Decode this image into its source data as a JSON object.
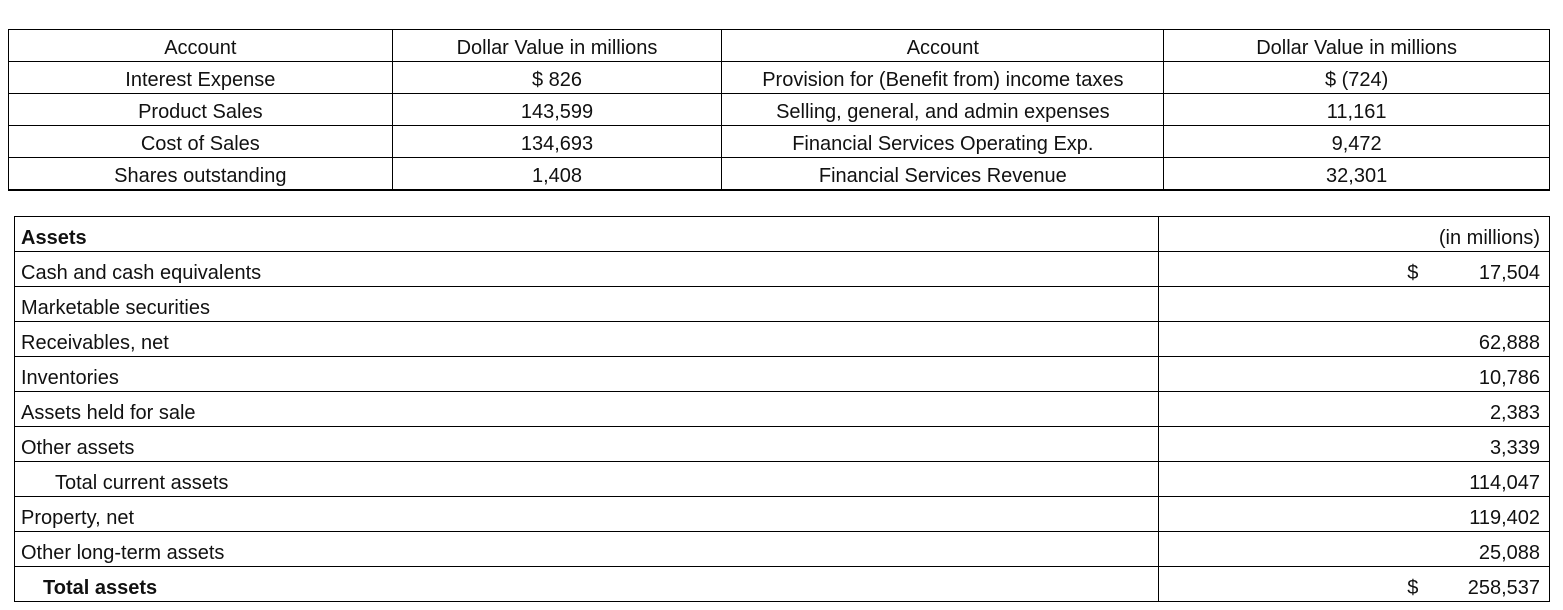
{
  "top_table": {
    "header": [
      "Account",
      "Dollar Value in millions",
      "Account",
      "Dollar Value in millions"
    ],
    "rows": [
      [
        "Interest Expense",
        "$ 826",
        "Provision for (Benefit from) income taxes",
        "$ (724)"
      ],
      [
        "Product Sales",
        "143,599",
        "Selling, general, and admin expenses",
        "11,161"
      ],
      [
        "Cost of Sales",
        "134,693",
        "Financial Services Operating Exp.",
        "9,472"
      ],
      [
        "Shares outstanding",
        "1,408",
        "Financial Services Revenue",
        "32,301"
      ]
    ]
  },
  "assets_table": {
    "header": {
      "label": "Assets",
      "value": "(in millions)"
    },
    "rows": [
      {
        "label": "Cash and cash equivalents",
        "dollar": "$",
        "value": "17,504"
      },
      {
        "label": "Marketable securities",
        "dollar": "",
        "value": ""
      },
      {
        "label": "Receivables, net",
        "dollar": "",
        "value": "62,888"
      },
      {
        "label": "Inventories",
        "dollar": "",
        "value": "10,786"
      },
      {
        "label": "Assets held for sale",
        "dollar": "",
        "value": "2,383"
      },
      {
        "label": "Other assets",
        "dollar": "",
        "value": "3,339"
      },
      {
        "label": "Total current assets",
        "dollar": "",
        "value": "114,047"
      },
      {
        "label": "Property, net",
        "dollar": "",
        "value": "119,402"
      },
      {
        "label": "Other long-term assets",
        "dollar": "",
        "value": "25,088"
      },
      {
        "label": "Total assets",
        "dollar": "$",
        "value": "258,537"
      }
    ]
  }
}
